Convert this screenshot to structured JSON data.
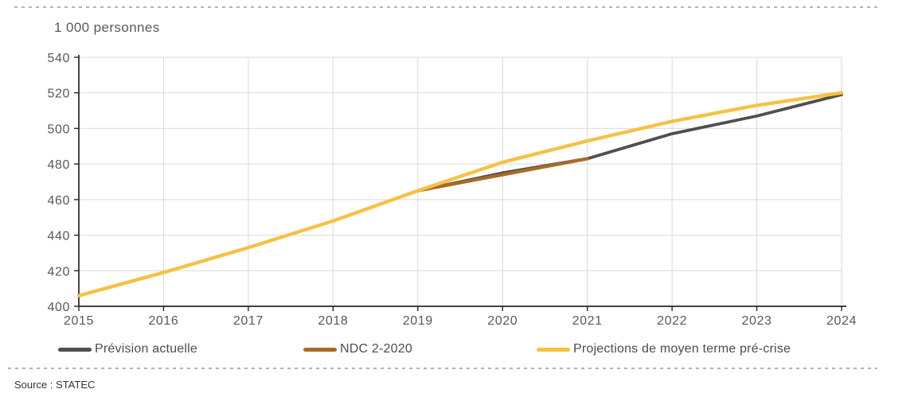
{
  "page": {
    "title": "1 000 personnes",
    "source": "Source : STATEC"
  },
  "colors": {
    "axis": "#262626",
    "grid": "#d9d9d9",
    "tick_text": "#595959",
    "dashed_rule": "#b3b3b3",
    "prevision_line": "#4F4F51",
    "ndc_line": "#A96A26",
    "projections_line": "#F6C243"
  },
  "legend": [
    {
      "label": "Prévision actuelle"
    },
    {
      "label": "NDC 2-2020"
    },
    {
      "label": "Projections de moyen terme pré-crise"
    }
  ],
  "chart_data": {
    "type": "line",
    "title": "1 000 personnes",
    "ylabel": "1 000 personnes",
    "xlabel": "",
    "x": [
      2015,
      2016,
      2017,
      2018,
      2019,
      2020,
      2021,
      2022,
      2023,
      2024
    ],
    "xticks": [
      2015,
      2016,
      2017,
      2018,
      2019,
      2020,
      2021,
      2022,
      2023,
      2024
    ],
    "yticks": [
      400,
      420,
      440,
      460,
      480,
      500,
      520,
      540
    ],
    "ylim": [
      400,
      540
    ],
    "grid": true,
    "legend_position": "bottom",
    "series": [
      {
        "name": "Prévision actuelle",
        "color": "#4F4F51",
        "x": [
          2015,
          2016,
          2017,
          2018,
          2019,
          2020,
          2021,
          2022,
          2023,
          2024
        ],
        "values": [
          406,
          419,
          433,
          448,
          465,
          475,
          483,
          497,
          507,
          519
        ]
      },
      {
        "name": "NDC 2-2020",
        "color": "#A96A26",
        "x": [
          2019,
          2020,
          2021
        ],
        "values": [
          465,
          474,
          483
        ]
      },
      {
        "name": "Projections de moyen terme pré-crise",
        "color": "#F6C243",
        "x": [
          2015,
          2016,
          2017,
          2018,
          2019,
          2020,
          2021,
          2022,
          2023,
          2024
        ],
        "values": [
          406,
          419,
          433,
          448,
          465,
          481,
          493,
          504,
          513,
          520
        ]
      }
    ]
  }
}
